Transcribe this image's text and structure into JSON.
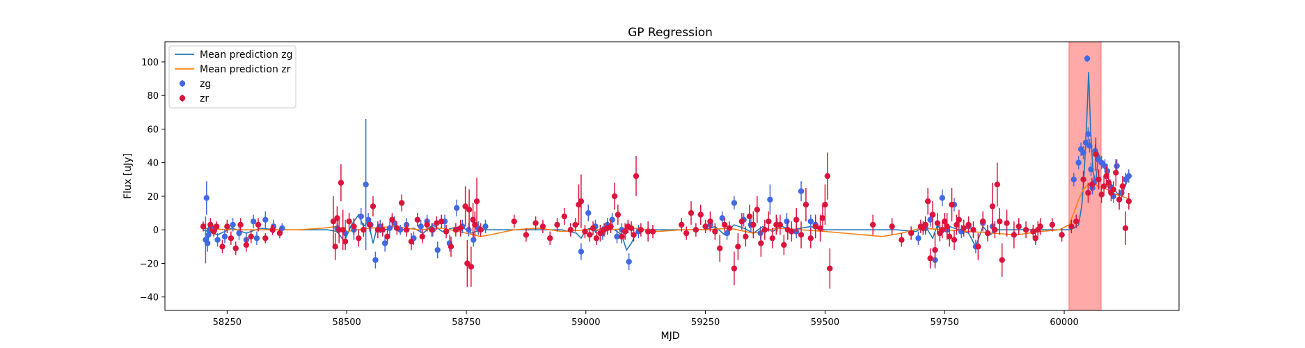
{
  "chart_data": {
    "type": "scatter",
    "title": "GP Regression",
    "xlabel": "MJD",
    "ylabel": "Flux [uJy]",
    "xlim": [
      58120,
      60240
    ],
    "ylim": [
      -48,
      112
    ],
    "xticks": [
      "58250",
      "58500",
      "58750",
      "59000",
      "59250",
      "59500",
      "59750",
      "60000"
    ],
    "xtick_values": [
      58250,
      58500,
      58750,
      59000,
      59250,
      59500,
      59750,
      60000
    ],
    "yticks": [
      "−40",
      "−20",
      "0",
      "20",
      "40",
      "60",
      "80",
      "100"
    ],
    "ytick_values": [
      -40,
      -20,
      0,
      20,
      40,
      60,
      80,
      100
    ],
    "grid": false,
    "legend": {
      "placement": "top-left",
      "entries": [
        "Mean prediction zg",
        "Mean prediction zr",
        "zg",
        "zr"
      ]
    },
    "highlight_span": {
      "x_start": 60010,
      "x_end": 60077,
      "color": "#ff9a9a"
    },
    "colors": {
      "zg": "#4169e1",
      "zr": "#dc143c",
      "mean_zg": "#1f77b4",
      "mean_zr": "#ff7f0e"
    },
    "series": [
      {
        "name": "zg",
        "type": "errorbar",
        "x": [
          58205,
          58207,
          58209,
          58211,
          58213,
          58216,
          58230,
          58245,
          58262,
          58275,
          58290,
          58305,
          58312,
          58330,
          58347,
          58365,
          58480,
          58497,
          58515,
          58530,
          58540,
          58545,
          58550,
          58560,
          58570,
          58580,
          58590,
          58600,
          58612,
          58625,
          58640,
          58655,
          58668,
          58680,
          58690,
          58705,
          58715,
          58730,
          58742,
          58755,
          58765,
          58775,
          58790,
          58990,
          59005,
          59020,
          59035,
          59045,
          59055,
          59065,
          59075,
          59090,
          59110,
          59260,
          59285,
          59295,
          59310,
          59330,
          59345,
          59365,
          59385,
          59400,
          59420,
          59440,
          59450,
          59470,
          59480,
          59695,
          59710,
          59720,
          59730,
          59745,
          59755,
          59770,
          59785,
          59800,
          59815,
          59830,
          59840,
          59850,
          60020,
          60030,
          60035,
          60040,
          60045,
          60048,
          60050,
          60053,
          60056,
          60059,
          60062,
          60065,
          60070,
          60078,
          60085,
          60090,
          60096,
          60103,
          60110,
          60120,
          60128,
          60135
        ],
        "y": [
          -6,
          19,
          -8,
          -3,
          0,
          2,
          -6,
          -4,
          3,
          -2,
          -6,
          5,
          -5,
          6,
          2,
          1,
          1,
          -2,
          0,
          8,
          27,
          6,
          3,
          -18,
          2,
          -8,
          1,
          4,
          0,
          3,
          -5,
          2,
          5,
          0,
          -12,
          5,
          -8,
          13,
          2,
          0,
          -6,
          1,
          2,
          -13,
          10,
          2,
          -2,
          3,
          6,
          -4,
          0,
          -19,
          -1,
          3,
          7,
          -2,
          16,
          6,
          3,
          -2,
          18,
          3,
          5,
          -1,
          23,
          5,
          3,
          -5,
          1,
          6,
          -18,
          19,
          0,
          15,
          -1,
          2,
          -10,
          4,
          -2,
          2,
          30,
          40,
          48,
          46,
          52,
          102,
          57,
          50,
          36,
          25,
          28,
          47,
          42,
          40,
          38,
          35,
          26,
          20,
          38,
          22,
          30,
          32
        ],
        "yerr": [
          14,
          10,
          5,
          4,
          4,
          3,
          4,
          4,
          4,
          4,
          4,
          4,
          4,
          5,
          4,
          3,
          3,
          8,
          6,
          5,
          39,
          4,
          4,
          5,
          4,
          5,
          4,
          4,
          3,
          4,
          4,
          4,
          4,
          4,
          5,
          4,
          5,
          5,
          4,
          4,
          4,
          4,
          4,
          5,
          5,
          4,
          4,
          4,
          4,
          4,
          4,
          5,
          4,
          4,
          4,
          4,
          4,
          4,
          4,
          4,
          9,
          4,
          5,
          4,
          6,
          4,
          4,
          4,
          4,
          4,
          5,
          5,
          4,
          4,
          4,
          4,
          4,
          4,
          4,
          4,
          4,
          4,
          4,
          4,
          4,
          2,
          4,
          4,
          4,
          4,
          4,
          4,
          4,
          4,
          4,
          4,
          4,
          4,
          4,
          4,
          4,
          4
        ]
      },
      {
        "name": "zr",
        "type": "errorbar",
        "x": [
          58200,
          58215,
          58222,
          58228,
          58240,
          58250,
          58258,
          58268,
          58278,
          58290,
          58300,
          58315,
          58330,
          58345,
          58360,
          58472,
          58476,
          58480,
          58484,
          58488,
          58492,
          58497,
          58505,
          58515,
          58525,
          58535,
          58548,
          58555,
          58565,
          58575,
          58585,
          58595,
          58605,
          58615,
          58625,
          58635,
          58648,
          58658,
          58668,
          58678,
          58688,
          58698,
          58708,
          58718,
          58728,
          58738,
          58748,
          58752,
          58756,
          58760,
          58764,
          58768,
          58772,
          58780,
          58850,
          58875,
          58895,
          58910,
          58925,
          58940,
          58955,
          58968,
          58978,
          58985,
          58990,
          58998,
          59008,
          59015,
          59022,
          59030,
          59038,
          59045,
          59052,
          59060,
          59067,
          59075,
          59082,
          59088,
          59095,
          59100,
          59105,
          59115,
          59130,
          59140,
          59200,
          59210,
          59220,
          59230,
          59240,
          59250,
          59260,
          59270,
          59280,
          59290,
          59300,
          59310,
          59318,
          59326,
          59334,
          59342,
          59350,
          59358,
          59366,
          59374,
          59382,
          59390,
          59398,
          59406,
          59414,
          59422,
          59430,
          59440,
          59450,
          59460,
          59470,
          59480,
          59490,
          59495,
          59500,
          59505,
          59510,
          59600,
          59640,
          59660,
          59680,
          59700,
          59705,
          59710,
          59715,
          59720,
          59725,
          59730,
          59735,
          59740,
          59745,
          59750,
          59755,
          59760,
          59765,
          59770,
          59775,
          59780,
          59790,
          59800,
          59810,
          59820,
          59830,
          59840,
          59850,
          59855,
          59860,
          59865,
          59870,
          59880,
          59895,
          59905,
          59920,
          59935,
          59940,
          59945,
          59950,
          59975,
          59995,
          60015,
          60025,
          60040,
          60050,
          60058,
          60066,
          60072,
          60078,
          60083,
          60088,
          60093,
          60098,
          60103,
          60108,
          60115,
          60122,
          60128,
          60135
        ],
        "y": [
          2,
          3,
          -1,
          2,
          -10,
          2,
          -5,
          -11,
          3,
          -9,
          -4,
          3,
          -5,
          0,
          -2,
          5,
          -10,
          7,
          0,
          28,
          0,
          -7,
          5,
          2,
          -5,
          0,
          3,
          14,
          0,
          0,
          -4,
          6,
          1,
          16,
          0,
          -7,
          6,
          -4,
          3,
          0,
          4,
          5,
          -1,
          -10,
          0,
          1,
          14,
          -20,
          12,
          -22,
          6,
          3,
          17,
          0,
          5,
          -3,
          4,
          2,
          -5,
          3,
          8,
          0,
          3,
          15,
          17,
          -1,
          -3,
          1,
          -5,
          -2,
          0,
          1,
          2,
          20,
          9,
          -4,
          -1,
          2,
          1,
          -3,
          32,
          0,
          -1,
          -1,
          3,
          -2,
          10,
          0,
          9,
          2,
          5,
          -1,
          -11,
          3,
          1,
          -23,
          -10,
          5,
          -4,
          8,
          3,
          12,
          -8,
          0,
          5,
          -5,
          3,
          3,
          -9,
          0,
          -1,
          6,
          -3,
          15,
          -5,
          2,
          1,
          7,
          15,
          32,
          -23,
          3,
          2,
          -6,
          -2,
          2,
          1,
          3,
          17,
          -17,
          9,
          -12,
          4,
          -2,
          0,
          5,
          2,
          -4,
          15,
          -6,
          3,
          6,
          1,
          3,
          0,
          -10,
          5,
          -2,
          14,
          0,
          27,
          5,
          -18,
          4,
          -3,
          2,
          0,
          -1,
          -5,
          0,
          2,
          3,
          -3,
          2,
          5,
          30,
          22,
          27,
          45,
          30,
          21,
          26,
          32,
          28,
          22,
          24,
          34,
          18,
          26,
          1,
          17
        ],
        "yerr": [
          3,
          4,
          3,
          3,
          4,
          4,
          4,
          4,
          4,
          4,
          4,
          4,
          3,
          3,
          3,
          15,
          8,
          7,
          8,
          11,
          12,
          5,
          5,
          5,
          5,
          4,
          4,
          6,
          5,
          4,
          4,
          4,
          4,
          5,
          4,
          5,
          4,
          4,
          4,
          4,
          4,
          4,
          4,
          6,
          4,
          5,
          12,
          14,
          12,
          12,
          10,
          8,
          14,
          4,
          4,
          4,
          4,
          4,
          4,
          4,
          5,
          4,
          4,
          12,
          16,
          4,
          4,
          4,
          4,
          5,
          4,
          4,
          4,
          8,
          6,
          4,
          5,
          4,
          4,
          4,
          12,
          4,
          6,
          4,
          4,
          4,
          7,
          4,
          6,
          4,
          6,
          5,
          8,
          4,
          4,
          10,
          8,
          5,
          6,
          7,
          8,
          8,
          8,
          6,
          6,
          6,
          6,
          6,
          6,
          6,
          6,
          7,
          8,
          10,
          6,
          7,
          8,
          8,
          12,
          14,
          12,
          6,
          5,
          4,
          4,
          4,
          4,
          5,
          8,
          6,
          8,
          10,
          6,
          5,
          5,
          5,
          8,
          6,
          10,
          6,
          6,
          6,
          5,
          5,
          5,
          8,
          6,
          5,
          14,
          5,
          13,
          8,
          10,
          8,
          8,
          5,
          5,
          4,
          4,
          5,
          5,
          4,
          4,
          4,
          4,
          5,
          6,
          4,
          10,
          6,
          5,
          6,
          6,
          6,
          5,
          5,
          8,
          6,
          6,
          10,
          5
        ]
      },
      {
        "name": "Mean prediction zg",
        "type": "line",
        "x": [
          58200,
          58230,
          58260,
          58290,
          58320,
          58350,
          58380,
          58420,
          58460,
          58480,
          58495,
          58510,
          58525,
          58535,
          58545,
          58555,
          58565,
          58580,
          58600,
          58620,
          58640,
          58660,
          58680,
          58700,
          58720,
          58740,
          58760,
          58780,
          58800,
          58850,
          58900,
          58950,
          58980,
          58990,
          59000,
          59010,
          59020,
          59040,
          59060,
          59075,
          59085,
          59095,
          59105,
          59115,
          59130,
          59150,
          59200,
          59250,
          59270,
          59290,
          59310,
          59330,
          59350,
          59370,
          59390,
          59410,
          59430,
          59450,
          59470,
          59490,
          59550,
          59650,
          59690,
          59710,
          59725,
          59735,
          59745,
          59760,
          59780,
          59800,
          59815,
          59830,
          59845,
          59860,
          59900,
          59950,
          59990,
          60010,
          60020,
          60030,
          60037,
          60042,
          60047,
          60051,
          60055,
          60060,
          60066,
          60072,
          60080,
          60090,
          60100,
          60110,
          60120,
          60130,
          60135
        ],
        "y": [
          0,
          -3,
          1,
          -2,
          1,
          0,
          0,
          0,
          0,
          -1,
          -7,
          3,
          9,
          2,
          5,
          -8,
          3,
          0,
          2,
          0,
          1,
          -2,
          3,
          -1,
          1,
          2,
          -2,
          0,
          0,
          0,
          0,
          0,
          -2,
          -5,
          0,
          1,
          -1,
          2,
          0,
          -3,
          -12,
          -8,
          -2,
          0,
          0,
          0,
          0,
          0,
          2,
          -3,
          3,
          1,
          -2,
          2,
          -1,
          2,
          0,
          1,
          2,
          0,
          0,
          0,
          -1,
          2,
          -5,
          3,
          -2,
          2,
          0,
          -2,
          -10,
          2,
          -3,
          0,
          0,
          0,
          0,
          0,
          1,
          3,
          15,
          35,
          65,
          94,
          60,
          35,
          28,
          45,
          40,
          32,
          26,
          22,
          20,
          28,
          30
        ]
      },
      {
        "name": "Mean prediction zr",
        "type": "line",
        "x": [
          58200,
          58250,
          58300,
          58350,
          58400,
          58450,
          58480,
          58500,
          58520,
          58550,
          58600,
          58650,
          58700,
          58750,
          58780,
          58800,
          58850,
          58900,
          58950,
          59000,
          59050,
          59100,
          59150,
          59200,
          59250,
          59300,
          59350,
          59400,
          59450,
          59500,
          59540,
          59580,
          59620,
          59660,
          59700,
          59750,
          59800,
          59850,
          59900,
          59950,
          59990,
          60010,
          60020,
          60030,
          60040,
          60050,
          60060,
          60070,
          60080,
          60090,
          60100,
          60110,
          60120,
          60130,
          60135
        ],
        "y": [
          1,
          0,
          0,
          0,
          0,
          1,
          2,
          -1,
          0,
          1,
          2,
          0,
          1,
          -2,
          -4,
          -3,
          0,
          1,
          -1,
          0,
          0,
          1,
          -1,
          0,
          0,
          1,
          -2,
          1,
          0,
          -1,
          -2,
          -3,
          -4,
          -2,
          1,
          0,
          -1,
          -2,
          -3,
          -1,
          0,
          3,
          10,
          18,
          24,
          27,
          28,
          26,
          25,
          24,
          22,
          21,
          20,
          19,
          18
        ]
      }
    ]
  }
}
